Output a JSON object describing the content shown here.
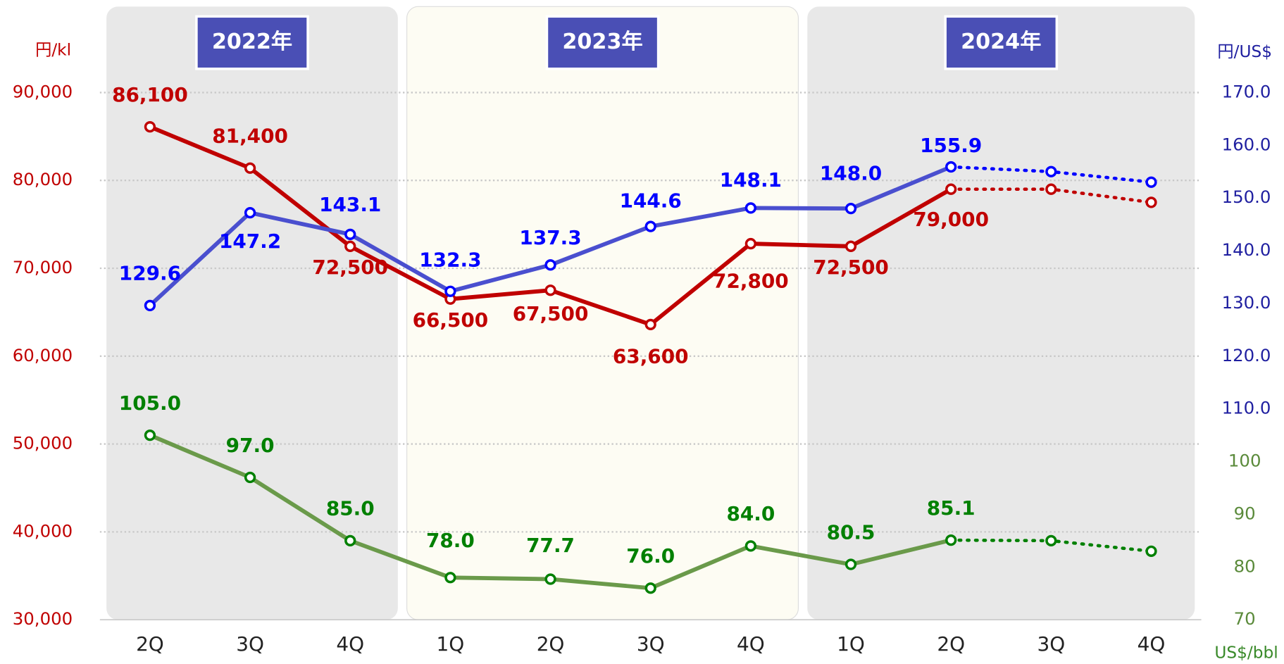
{
  "chart_data": {
    "type": "line",
    "categories": [
      "2Q",
      "3Q",
      "4Q",
      "1Q",
      "2Q",
      "3Q",
      "4Q",
      "1Q",
      "2Q",
      "3Q",
      "4Q"
    ],
    "year_groups": [
      {
        "label": "2022年",
        "span": 3,
        "color": "#e8e8e8"
      },
      {
        "label": "2023年",
        "span": 4,
        "color": "#fdfcf3"
      },
      {
        "label": "2024年",
        "span": 4,
        "color": "#e8e8e8"
      }
    ],
    "ylabel": "円/kl",
    "y2label": "円/US$",
    "y3label": "US$/bbl",
    "ylim": [
      30000,
      90000
    ],
    "yticks": [
      {
        "value": 30000,
        "label": "30,000"
      },
      {
        "value": 40000,
        "label": "40,000"
      },
      {
        "value": 50000,
        "label": "50,000"
      },
      {
        "value": 60000,
        "label": "60,000"
      },
      {
        "value": 70000,
        "label": "70,000"
      },
      {
        "value": 80000,
        "label": "80,000"
      },
      {
        "value": 90000,
        "label": "90,000"
      }
    ],
    "y2lim": [
      70,
      170
    ],
    "y2ticks": [
      {
        "value": 110,
        "label": "110.0"
      },
      {
        "value": 120,
        "label": "120.0"
      },
      {
        "value": 130,
        "label": "130.0"
      },
      {
        "value": 140,
        "label": "140.0"
      },
      {
        "value": 150,
        "label": "150.0"
      },
      {
        "value": 160,
        "label": "160.0"
      },
      {
        "value": 170,
        "label": "170.0"
      }
    ],
    "y3lim": [
      70,
      170
    ],
    "y3ticks": [
      70,
      80,
      90,
      100
    ],
    "grid": true,
    "projection_start": 8,
    "series": [
      {
        "color": "#c00000",
        "axis": "y",
        "values": [
          86100,
          81400,
          72500,
          66500,
          67500,
          63600,
          72800,
          72500,
          79000,
          79000,
          77500
        ],
        "value_labels": [
          "86,100",
          "81,400",
          "72,500",
          "66,500",
          "67,500",
          "63,600",
          "72,800",
          "72,500",
          "79,000",
          null,
          null
        ]
      },
      {
        "color": "#4a4fcf",
        "axis": "y2",
        "values": [
          129.6,
          147.2,
          143.1,
          132.3,
          137.3,
          144.6,
          148.1,
          148.0,
          155.9,
          155.0,
          153.0
        ],
        "value_labels": [
          "129.6",
          "147.2",
          "143.1",
          "132.3",
          "137.3",
          "144.6",
          "148.1",
          "148.0",
          "155.9",
          null,
          null
        ]
      },
      {
        "color": "#6a9a4a",
        "axis": "y3",
        "values": [
          105.0,
          97.0,
          85.0,
          78.0,
          77.7,
          76.0,
          84.0,
          80.5,
          85.1,
          85.0,
          83.0
        ],
        "value_labels": [
          "105.0",
          "97.0",
          "85.0",
          "78.0",
          "77.7",
          "76.0",
          "84.0",
          "80.5",
          "85.1",
          null,
          null
        ]
      }
    ]
  }
}
